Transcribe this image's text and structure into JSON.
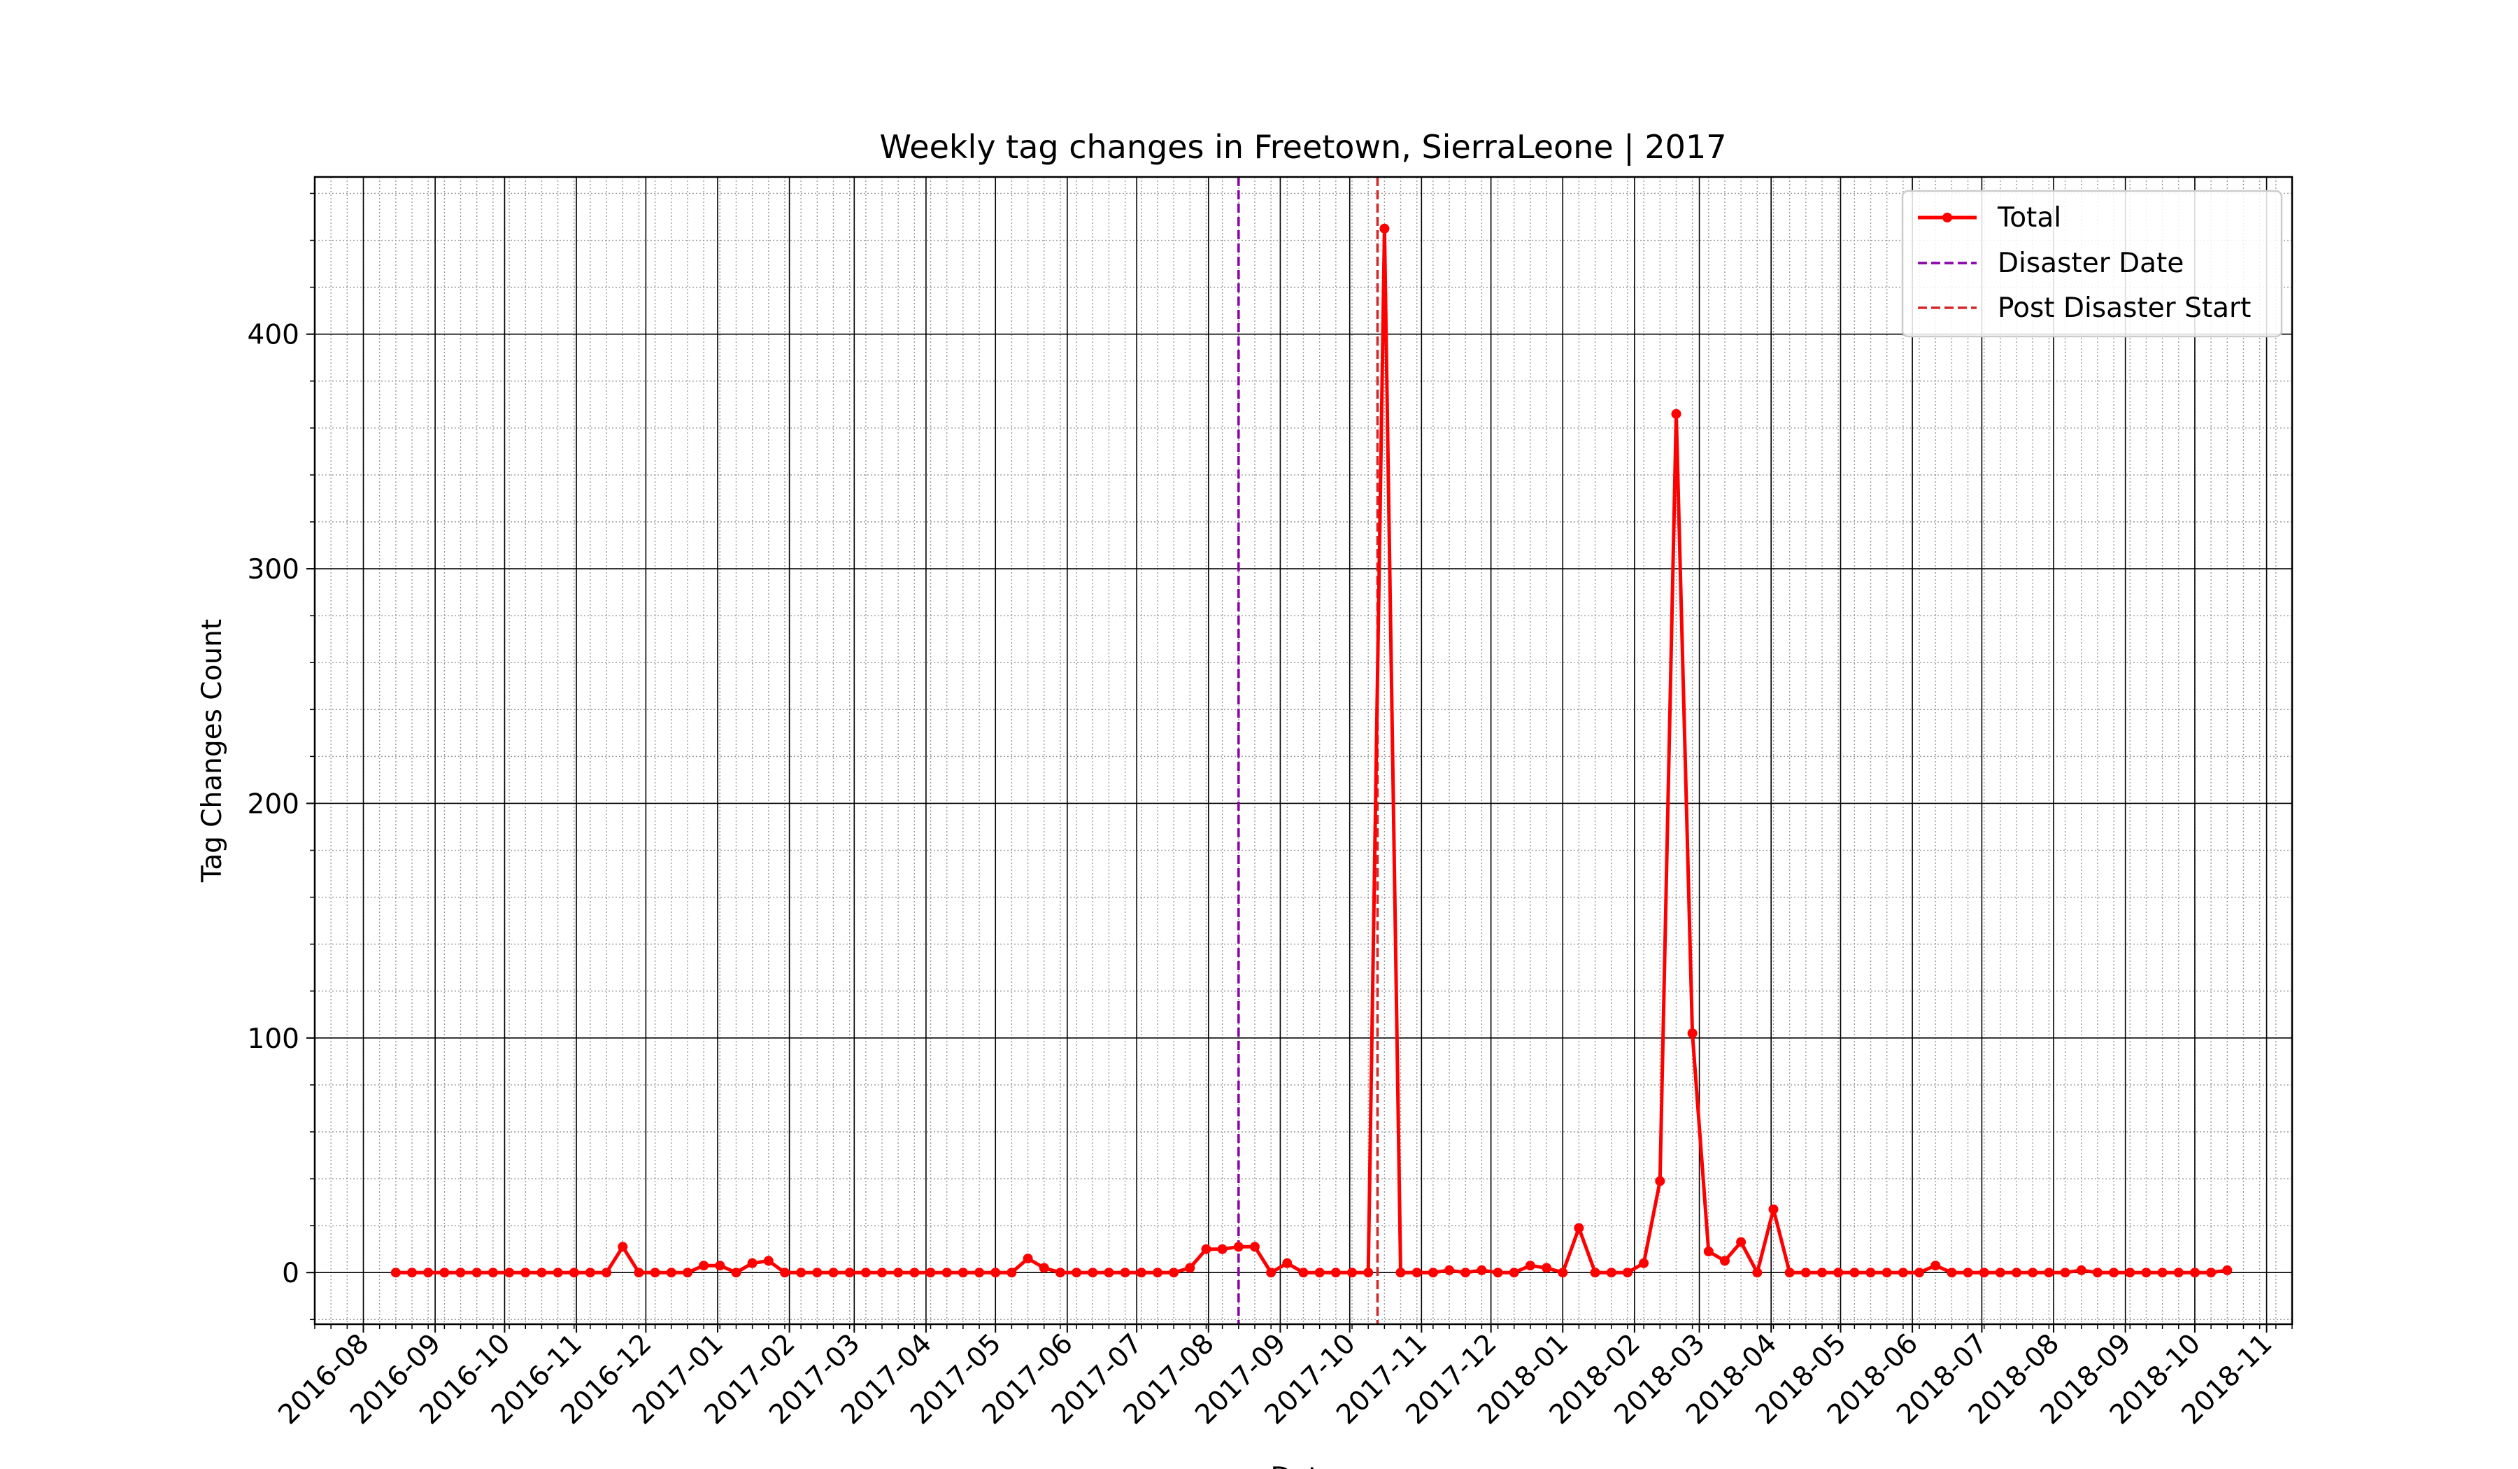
{
  "chart_data": {
    "type": "line",
    "title": "Weekly tag changes in Freetown, SierraLeone | 2017",
    "xlabel": "Date",
    "ylabel": "Tag Changes Count",
    "xlim": [
      "2016-07-11",
      "2018-11-12"
    ],
    "ylim": [
      -22,
      467
    ],
    "x_ticks": [
      "2016-08",
      "2016-09",
      "2016-10",
      "2016-11",
      "2016-12",
      "2017-01",
      "2017-02",
      "2017-03",
      "2017-04",
      "2017-05",
      "2017-06",
      "2017-07",
      "2017-08",
      "2017-09",
      "2017-10",
      "2017-11",
      "2017-12",
      "2018-01",
      "2018-02",
      "2018-03",
      "2018-04",
      "2018-05",
      "2018-06",
      "2018-07",
      "2018-08",
      "2018-09",
      "2018-10",
      "2018-11"
    ],
    "y_ticks": [
      0,
      100,
      200,
      300,
      400
    ],
    "y_minor_step": 20,
    "grid": true,
    "legend_position": "top-right",
    "series": [
      {
        "name": "Total",
        "color": "#ff0000",
        "start_date": "2016-08-15",
        "step_days": 7,
        "values": [
          0,
          0,
          0,
          0,
          0,
          0,
          0,
          0,
          0,
          0,
          0,
          0,
          0,
          0,
          11,
          0,
          0,
          0,
          0,
          3,
          3,
          0,
          4,
          5,
          0,
          0,
          0,
          0,
          0,
          0,
          0,
          0,
          0,
          0,
          0,
          0,
          0,
          0,
          0,
          6,
          2,
          0,
          0,
          0,
          0,
          0,
          0,
          0,
          0,
          2,
          10,
          10,
          11,
          11,
          0,
          4,
          0,
          0,
          0,
          0,
          0,
          445,
          0,
          0,
          0,
          1,
          0,
          1,
          0,
          0,
          3,
          2,
          0,
          19,
          0,
          0,
          0,
          4,
          39,
          366,
          102,
          9,
          5,
          13,
          0,
          27,
          0,
          0,
          0,
          0,
          0,
          0,
          0,
          0,
          0,
          3,
          0,
          0,
          0,
          0,
          0,
          0,
          0,
          0,
          1,
          0,
          0,
          0,
          0,
          0,
          0,
          0,
          0,
          1
        ]
      }
    ],
    "vlines": [
      {
        "name": "Disaster Date",
        "date": "2017-08-14",
        "color": "#8b00a8"
      },
      {
        "name": "Post Disaster Start",
        "date": "2017-10-13",
        "color": "#d62728"
      }
    ]
  }
}
